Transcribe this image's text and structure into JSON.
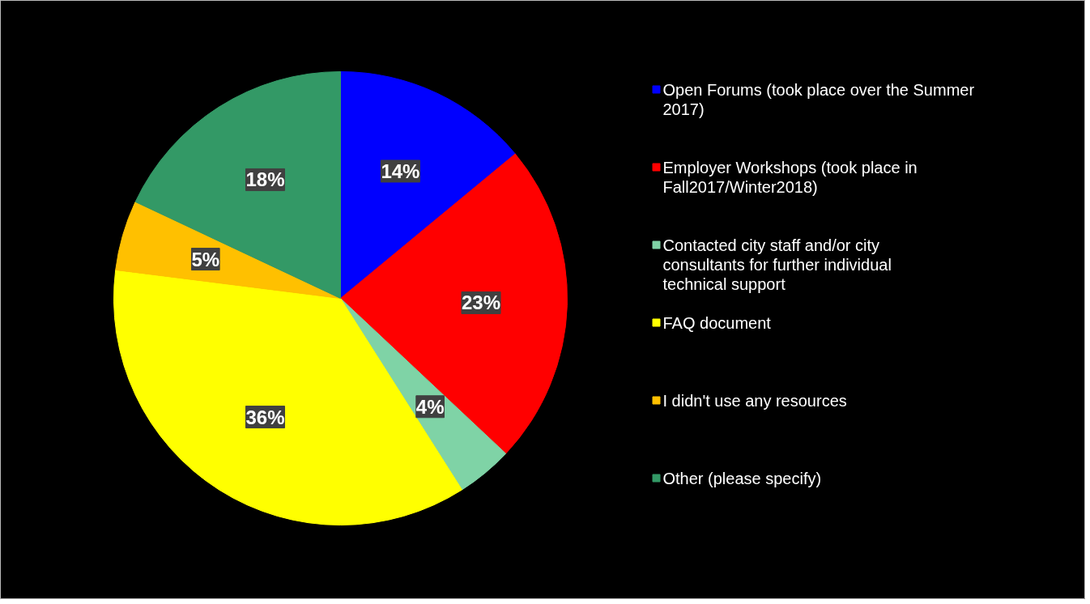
{
  "chart_data": {
    "type": "pie",
    "categories": [
      "Open Forums (took place over the Summer 2017)",
      "Employer Workshops (took place in Fall2017/Winter2018)",
      "Contacted city staff and/or city consultants for further individual technical support",
      "FAQ document",
      "I didn't use any resources",
      "Other (please specify)"
    ],
    "values": [
      14,
      23,
      4,
      36,
      5,
      18
    ],
    "colors": [
      "#0000ff",
      "#ff0000",
      "#7fd3a6",
      "#ffff00",
      "#ffc000",
      "#339966"
    ],
    "value_labels": [
      "14%",
      "23%",
      "4%",
      "36%",
      "5%",
      "18%"
    ],
    "legend": "right"
  }
}
